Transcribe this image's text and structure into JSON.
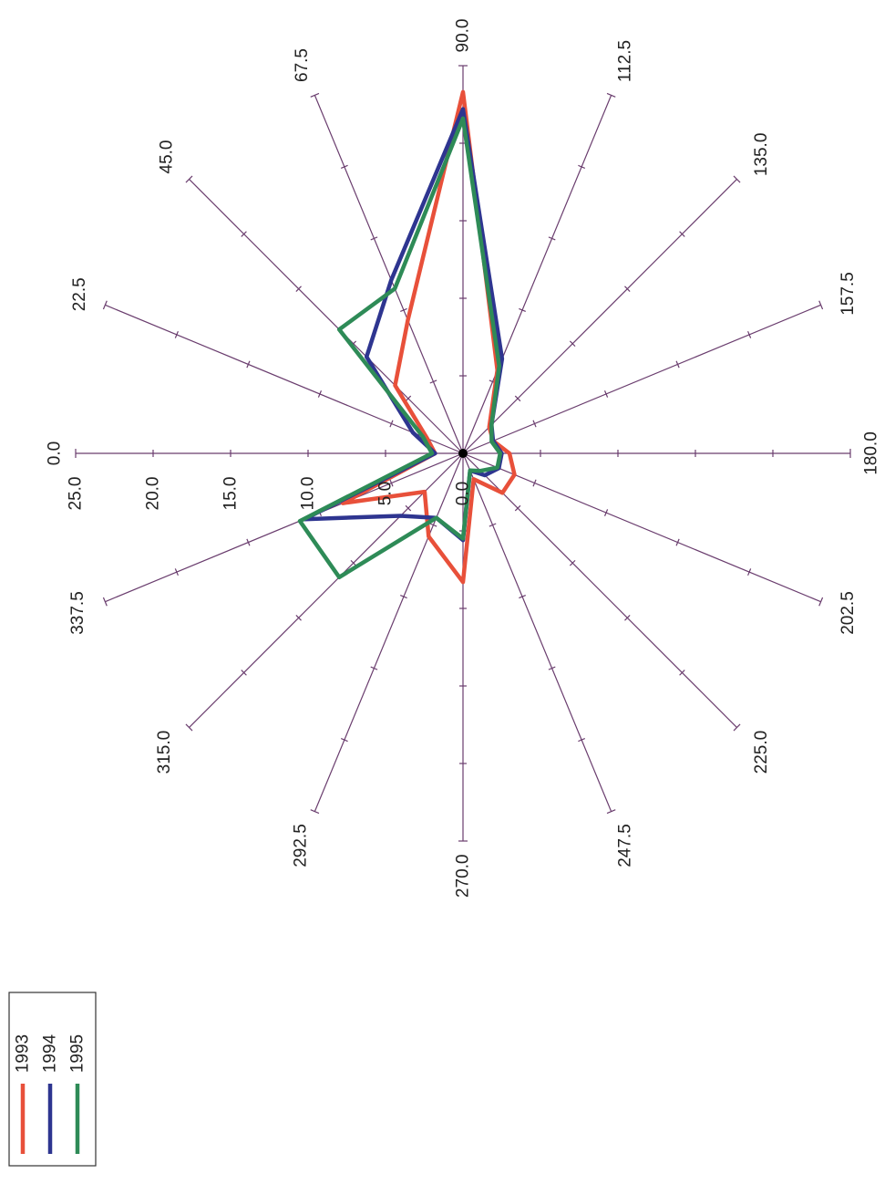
{
  "chart_data": {
    "type": "radar",
    "rotation": "figure rotated 90 degrees counter-clockwise (text reads bottom-to-top)",
    "directions": [
      "0.0",
      "22.5",
      "45.0",
      "67.5",
      "90.0",
      "112.5",
      "135.0",
      "157.5",
      "180.0",
      "202.5",
      "225.0",
      "247.5",
      "270.0",
      "292.5",
      "315.0",
      "337.5"
    ],
    "direction_values": [
      0,
      22.5,
      45,
      67.5,
      90,
      112.5,
      135,
      157.5,
      180,
      202.5,
      225,
      247.5,
      270,
      292.5,
      315,
      337.5
    ],
    "radial_ticks": [
      "0.0",
      "5.0",
      "10.0",
      "15.0",
      "20.0",
      "25.0"
    ],
    "radial_tick_values": [
      0,
      5,
      10,
      15,
      20,
      25
    ],
    "rlim": [
      0,
      25
    ],
    "grid": "radial spokes with tick marks",
    "legend_position": "bottom-left",
    "series": [
      {
        "name": "1993",
        "color": "#e8503a",
        "values": [
          1.8,
          2.5,
          6.2,
          9.3,
          23.3,
          5.8,
          2.4,
          2.1,
          3.0,
          3.6,
          3.6,
          1.8,
          8.3,
          5.8,
          3.5,
          8.4
        ]
      },
      {
        "name": "1994",
        "color": "#2e3590",
        "values": [
          1.8,
          3.5,
          8.8,
          12.1,
          22.2,
          6.6,
          2.6,
          2.1,
          2.5,
          2.5,
          2.0,
          1.2,
          5.6,
          4.5,
          5.7,
          11.1
        ]
      },
      {
        "name": "1995",
        "color": "#2e8b57",
        "values": [
          2.0,
          2.8,
          11.3,
          11.5,
          21.6,
          6.1,
          2.6,
          2.0,
          2.4,
          2.4,
          1.6,
          1.2,
          5.5,
          4.5,
          11.3,
          11.4
        ]
      }
    ]
  }
}
